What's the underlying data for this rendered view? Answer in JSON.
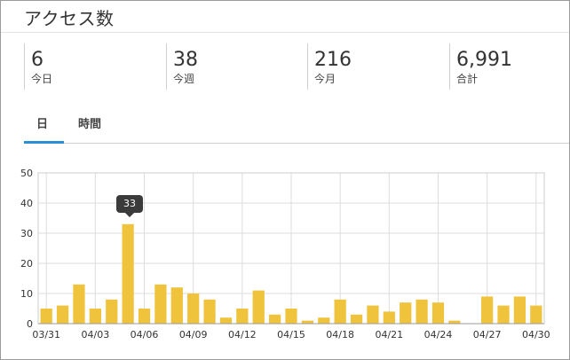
{
  "header": {
    "title": "アクセス数"
  },
  "stats": [
    {
      "value": "6",
      "label": "今日"
    },
    {
      "value": "38",
      "label": "今週"
    },
    {
      "value": "216",
      "label": "今月"
    },
    {
      "value": "6,991",
      "label": "合計"
    }
  ],
  "tabs": [
    {
      "label": "日",
      "active": true
    },
    {
      "label": "時間",
      "active": false
    }
  ],
  "tooltip": {
    "value": "33"
  },
  "colors": {
    "bar": "#f0c33c",
    "accent": "#2b8fd6",
    "tooltip": "#3b3b3b"
  },
  "chart_data": {
    "type": "bar",
    "categories": [
      "03/31",
      "04/01",
      "04/02",
      "04/03",
      "04/04",
      "04/05",
      "04/06",
      "04/07",
      "04/08",
      "04/09",
      "04/10",
      "04/11",
      "04/12",
      "04/13",
      "04/14",
      "04/15",
      "04/16",
      "04/17",
      "04/18",
      "04/19",
      "04/20",
      "04/21",
      "04/22",
      "04/23",
      "04/24",
      "04/25",
      "04/26",
      "04/27",
      "04/28",
      "04/29",
      "04/30"
    ],
    "values": [
      5,
      6,
      13,
      5,
      8,
      33,
      5,
      13,
      12,
      10,
      8,
      2,
      5,
      11,
      3,
      5,
      1,
      2,
      8,
      3,
      6,
      4,
      7,
      8,
      7,
      1,
      0,
      9,
      6,
      9,
      6
    ],
    "xticks": [
      "03/31",
      "04/03",
      "04/06",
      "04/09",
      "04/12",
      "04/15",
      "04/18",
      "04/21",
      "04/24",
      "04/27",
      "04/30"
    ],
    "yticks": [
      "0",
      "10",
      "20",
      "30",
      "40",
      "50"
    ],
    "ylim": [
      0,
      50
    ],
    "grid": true,
    "xlabel": "",
    "ylabel": ""
  }
}
